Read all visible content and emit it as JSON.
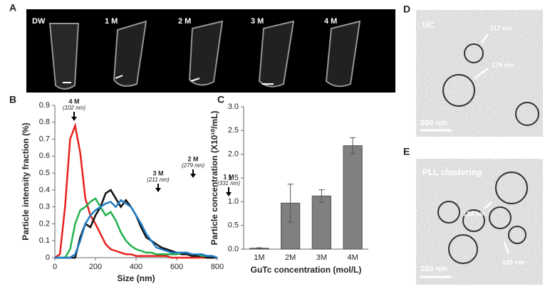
{
  "panel_labels": [
    "A",
    "B",
    "C",
    "D",
    "E"
  ],
  "photos": {
    "a": {
      "labels": [
        "DW",
        "1 M",
        "2 M",
        "3 M",
        "4 M"
      ]
    },
    "d": {
      "title": "UC",
      "sizes": [
        "117 nm",
        "179 nm"
      ],
      "scale": "200 nm"
    },
    "e": {
      "title": "PLL clustering",
      "sizes": [
        "138 nm",
        "128 nm"
      ],
      "scale": "200 nm"
    }
  },
  "chart_data": [
    {
      "type": "line",
      "xlabel": "Size (nm)",
      "ylabel": "Particle intensity fraction (%)",
      "x": [
        0,
        25,
        50,
        75,
        100,
        125,
        150,
        175,
        200,
        225,
        250,
        275,
        300,
        325,
        350,
        375,
        400,
        425,
        450,
        475,
        500,
        525,
        550,
        575,
        600,
        625,
        650,
        675,
        700,
        725,
        750,
        775,
        800
      ],
      "series": [
        {
          "name": "4 M",
          "peak_label": "(102 nm)",
          "color": "#e8201c",
          "values": [
            0,
            0.02,
            0.3,
            0.7,
            0.78,
            0.62,
            0.35,
            0.25,
            0.2,
            0.14,
            0.08,
            0.05,
            0.04,
            0.03,
            0.02,
            0.02,
            0.01,
            0.01,
            0.01,
            0.01,
            0.01,
            0.01,
            0.01,
            0,
            0,
            0,
            0,
            0,
            0,
            0,
            0,
            0,
            0
          ]
        },
        {
          "name": "2 M",
          "peak_label": "(279 nm)",
          "color": "#111111",
          "values": [
            0,
            0,
            0,
            0,
            0,
            0.12,
            0.2,
            0.18,
            0.25,
            0.3,
            0.38,
            0.4,
            0.35,
            0.3,
            0.34,
            0.3,
            0.25,
            0.18,
            0.12,
            0.1,
            0.08,
            0.06,
            0.05,
            0.04,
            0.03,
            0.02,
            0.02,
            0.01,
            0.01,
            0.01,
            0,
            0,
            0
          ]
        },
        {
          "name": "3 M",
          "peak_label": "(211 nm)",
          "color": "#22b14c",
          "values": [
            0,
            0,
            0,
            0.05,
            0.2,
            0.28,
            0.3,
            0.33,
            0.35,
            0.3,
            0.25,
            0.27,
            0.22,
            0.15,
            0.1,
            0.07,
            0.05,
            0.04,
            0.03,
            0.03,
            0.02,
            0.02,
            0.02,
            0.02,
            0.02,
            0.03,
            0.03,
            0.02,
            0.02,
            0.01,
            0.01,
            0.01,
            0
          ]
        },
        {
          "name": "1 M",
          "peak_label": "(331 nm)",
          "color": "#1f7bc4",
          "values": [
            0,
            0,
            0,
            0,
            0.02,
            0.1,
            0.2,
            0.25,
            0.28,
            0.3,
            0.32,
            0.33,
            0.3,
            0.34,
            0.32,
            0.3,
            0.25,
            0.2,
            0.14,
            0.1,
            0.06,
            0.05,
            0.04,
            0.03,
            0.03,
            0.03,
            0.03,
            0.02,
            0.02,
            0.02,
            0.01,
            0.01,
            0
          ]
        }
      ],
      "xlim": [
        0,
        800
      ],
      "xticks": [
        0,
        200,
        400,
        600,
        800
      ],
      "ylim": [
        0,
        0.9
      ],
      "yticks": [
        0,
        0.1,
        0.2,
        0.3,
        0.4,
        0.5,
        0.6,
        0.7,
        0.8,
        0.9
      ]
    },
    {
      "type": "bar",
      "xlabel": "GuTc concentration (mol/L)",
      "ylabel": "Particle concentration  (X10¹⁰/mL)",
      "categories": [
        "1M",
        "2M",
        "3M",
        "4M"
      ],
      "values": [
        0.02,
        0.97,
        1.12,
        2.18
      ],
      "errors": [
        0.01,
        0.4,
        0.13,
        0.17
      ],
      "color": "#808080",
      "ylim": [
        0,
        3
      ],
      "yticks": [
        {
          "value": 0,
          "label": "0.0"
        },
        {
          "value": 0.5,
          "label": "0.5"
        },
        {
          "value": 1,
          "label": "1.0"
        },
        {
          "value": 1.5,
          "label": "1.5"
        },
        {
          "value": 2,
          "label": "2.0"
        },
        {
          "value": 2.5,
          "label": "2.5"
        },
        {
          "value": 3,
          "label": "3.0"
        }
      ]
    }
  ]
}
